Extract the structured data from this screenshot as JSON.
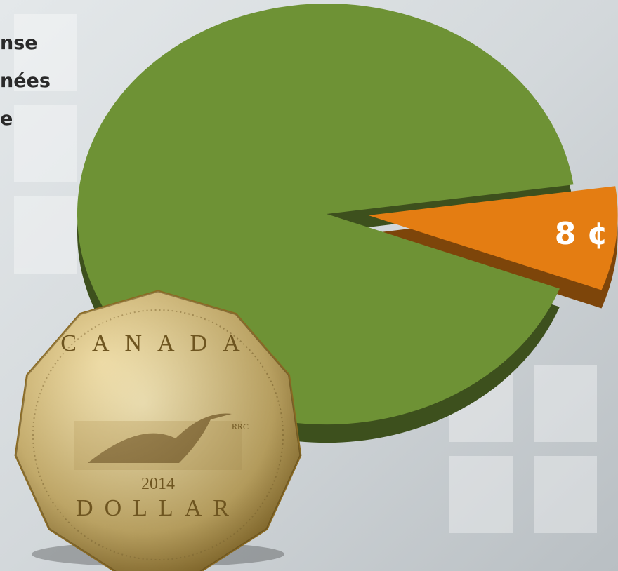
{
  "chart_data": {
    "type": "pie",
    "categories": [
      null,
      null
    ],
    "values": [
      92,
      8
    ],
    "value_labels": [
      null,
      "8 ¢"
    ],
    "colors": [
      "#6e9235",
      "#e47d12"
    ],
    "annotations": [
      "nse",
      "nées",
      "e"
    ],
    "coin": {
      "top": "CANADA",
      "bottom": "DOLLAR",
      "year": "2014",
      "mint": "RRC"
    }
  }
}
